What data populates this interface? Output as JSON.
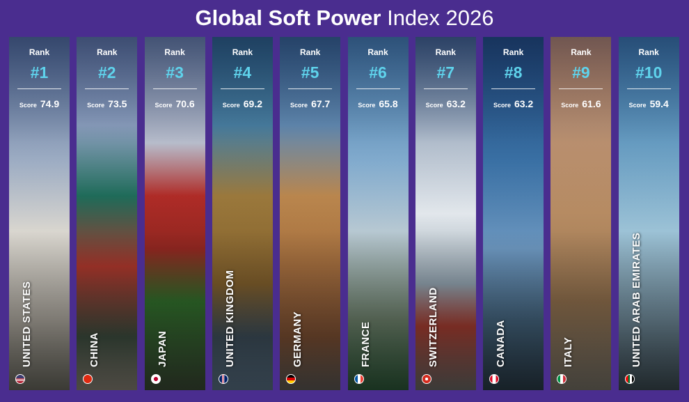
{
  "header": {
    "title_bold": "Global Soft Power",
    "title_regular": "Index 2026"
  },
  "rank_label": "Rank",
  "score_label": "Score",
  "cards": [
    {
      "rank": "#1",
      "score": "74.9",
      "country": "UNITED STATES"
    },
    {
      "rank": "#2",
      "score": "73.5",
      "country": "CHINA"
    },
    {
      "rank": "#3",
      "score": "70.6",
      "country": "JAPAN"
    },
    {
      "rank": "#4",
      "score": "69.2",
      "country": "UNITED KINGDOM"
    },
    {
      "rank": "#5",
      "score": "67.7",
      "country": "GERMANY"
    },
    {
      "rank": "#6",
      "score": "65.8",
      "country": "FRANCE"
    },
    {
      "rank": "#7",
      "score": "63.2",
      "country": "SWITZERLAND"
    },
    {
      "rank": "#8",
      "score": "63.2",
      "country": "CANADA"
    },
    {
      "rank": "#9",
      "score": "61.6",
      "country": "ITALY"
    },
    {
      "rank": "#10",
      "score": "59.4",
      "country": "UNITED ARAB EMIRATES"
    }
  ]
}
